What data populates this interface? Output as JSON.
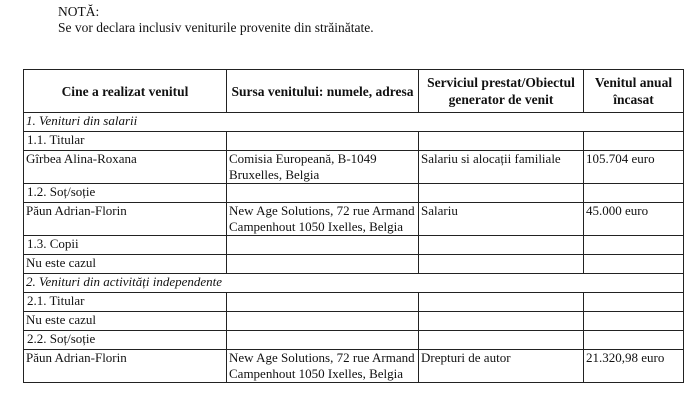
{
  "note": {
    "title": "NOTĂ:",
    "text": "Se vor declara inclusiv veniturile provenite din străinătate."
  },
  "table": {
    "headers": [
      "Cine a realizat venitul",
      "Sursa venitului: numele, adresa",
      "Serviciul prestat/Obiectul generator de venit",
      "Venitul anual încasat"
    ],
    "rows": [
      {
        "type": "section",
        "label": "1. Venituri din salarii"
      },
      {
        "type": "row",
        "cells": [
          "1.1. Titular",
          "",
          "",
          ""
        ]
      },
      {
        "type": "row",
        "cells": [
          "Gîrbea Alina-Roxana",
          "Comisia Europeană, B-1049 Bruxelles, Belgia",
          "Salariu si alocații familiale",
          "105.704 euro"
        ]
      },
      {
        "type": "row",
        "cells": [
          "1.2. Soț/soție",
          "",
          "",
          ""
        ]
      },
      {
        "type": "row",
        "cells": [
          "Păun Adrian-Florin",
          "New Age Solutions, 72 rue Armand Campenhout 1050 Ixelles, Belgia",
          "Salariu",
          "45.000 euro"
        ]
      },
      {
        "type": "row",
        "cells": [
          "1.3. Copii",
          "",
          "",
          ""
        ]
      },
      {
        "type": "row",
        "cells": [
          "Nu este cazul",
          "",
          "",
          ""
        ]
      },
      {
        "type": "section",
        "label": "2. Venituri din activități independente"
      },
      {
        "type": "row",
        "cells": [
          "2.1. Titular",
          "",
          "",
          ""
        ]
      },
      {
        "type": "row",
        "cells": [
          "Nu este cazul",
          "",
          "",
          ""
        ]
      },
      {
        "type": "row",
        "cells": [
          "2.2. Soț/soție",
          "",
          "",
          ""
        ]
      },
      {
        "type": "row",
        "cells": [
          "Păun Adrian-Florin",
          "New Age Solutions, 72 rue Armand Campenhout 1050 Ixelles, Belgia",
          "Drepturi de autor",
          "21.320,98 euro"
        ]
      }
    ]
  }
}
